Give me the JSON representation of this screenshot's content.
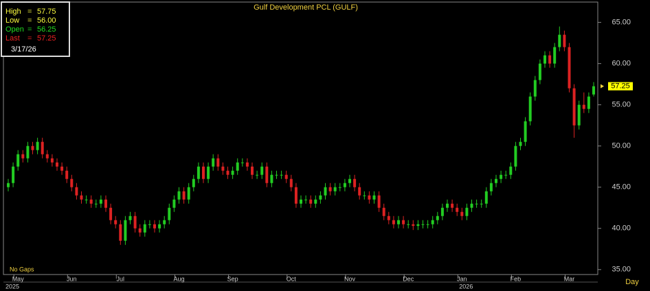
{
  "chart_data": {
    "type": "candlestick",
    "title": "Gulf Development PCL (GULF)",
    "info": {
      "rows": [
        {
          "name": "High",
          "value": "57.75",
          "color": "#ffff40"
        },
        {
          "name": "Low",
          "value": "56.00",
          "color": "#ffff40"
        },
        {
          "name": "Open",
          "value": "56.25",
          "color": "#22dd22"
        },
        {
          "name": "Last",
          "value": "57.25",
          "color": "#ee2222"
        }
      ],
      "date": "3/17/26"
    },
    "last_price": {
      "value": 57.25,
      "label": "57.25"
    },
    "note": "No Gaps",
    "period": "Day",
    "up_color": "#22cc22",
    "down_color": "#dd2222",
    "ylim": [
      34.4,
      67.3
    ],
    "yticks": [
      {
        "value": 35,
        "label": "35.00"
      },
      {
        "value": 40,
        "label": "40.00"
      },
      {
        "value": 45,
        "label": "45.00"
      },
      {
        "value": 50,
        "label": "50.00"
      },
      {
        "value": 55,
        "label": "55.00"
      },
      {
        "value": 60,
        "label": "60.00"
      },
      {
        "value": 65,
        "label": "65.00"
      }
    ],
    "xticks": [
      {
        "value": 2,
        "label": "May"
      },
      {
        "value": 13,
        "label": "Jun"
      },
      {
        "value": 23,
        "label": "Jul"
      },
      {
        "value": 35,
        "label": "Aug"
      },
      {
        "value": 46,
        "label": "Sep"
      },
      {
        "value": 58,
        "label": "Oct"
      },
      {
        "value": 70,
        "label": "Nov"
      },
      {
        "value": 82,
        "label": "Dec"
      },
      {
        "value": 93,
        "label": "Jan"
      },
      {
        "value": 104,
        "label": "Feb"
      },
      {
        "value": 115,
        "label": "Mar"
      }
    ],
    "years": [
      {
        "value": 0,
        "label": "2025"
      },
      {
        "value": 93,
        "label": "2026"
      }
    ],
    "grid": false,
    "ohlc": [
      [
        45,
        46,
        44.5,
        45.5
      ],
      [
        45.5,
        48,
        45,
        47.5
      ],
      [
        47.5,
        49.5,
        47,
        49
      ],
      [
        49,
        49.5,
        48,
        48.5
      ],
      [
        48.5,
        50.5,
        48,
        50
      ],
      [
        50,
        50.5,
        49,
        49.5
      ],
      [
        49.5,
        51,
        49,
        50.5
      ],
      [
        50.5,
        51,
        48.5,
        49
      ],
      [
        49,
        49.5,
        48,
        48.5
      ],
      [
        48.5,
        49,
        47.5,
        48
      ],
      [
        48,
        48.5,
        47,
        47.5
      ],
      [
        47.5,
        48,
        46.5,
        47
      ],
      [
        47,
        47.5,
        45.5,
        46
      ],
      [
        46,
        46.5,
        44.5,
        45
      ],
      [
        45,
        45.5,
        43.5,
        44
      ],
      [
        44,
        44.5,
        43,
        43.5
      ],
      [
        43.5,
        44,
        43,
        43.5
      ],
      [
        43.5,
        44,
        42.5,
        43
      ],
      [
        43,
        43.5,
        42.5,
        43
      ],
      [
        43,
        44,
        42.5,
        43.5
      ],
      [
        43.5,
        44,
        42,
        42.5
      ],
      [
        42.5,
        43,
        40.5,
        41
      ],
      [
        41,
        41.5,
        40,
        40.5
      ],
      [
        40.5,
        41,
        38,
        38.5
      ],
      [
        38.5,
        41.5,
        38,
        41
      ],
      [
        41,
        42,
        40.5,
        41.5
      ],
      [
        41.5,
        42,
        39.5,
        40
      ],
      [
        40,
        40.5,
        39,
        39.5
      ],
      [
        39.5,
        41,
        39,
        40.5
      ],
      [
        40.5,
        41,
        40,
        40.5
      ],
      [
        40.5,
        41,
        39.5,
        40
      ],
      [
        40,
        41,
        39.5,
        40.5
      ],
      [
        40.5,
        41.5,
        40,
        41
      ],
      [
        41,
        43,
        40.5,
        42.5
      ],
      [
        42.5,
        44,
        42,
        43.5
      ],
      [
        43.5,
        45,
        43,
        44.5
      ],
      [
        44.5,
        45,
        43,
        43.5
      ],
      [
        43.5,
        45.5,
        43,
        45
      ],
      [
        45,
        46.5,
        44.5,
        46
      ],
      [
        46,
        48,
        45.5,
        47.5
      ],
      [
        47.5,
        48,
        45.5,
        46
      ],
      [
        46,
        48,
        45.5,
        47.5
      ],
      [
        47.5,
        49,
        47,
        48.5
      ],
      [
        48.5,
        49,
        47,
        47.5
      ],
      [
        47.5,
        48,
        46.5,
        47
      ],
      [
        47,
        47.5,
        46,
        46.5
      ],
      [
        46.5,
        47.5,
        46,
        47
      ],
      [
        47,
        48.5,
        46.5,
        48
      ],
      [
        48,
        48.5,
        47.5,
        48
      ],
      [
        48,
        48.5,
        47,
        47.5
      ],
      [
        47.5,
        48,
        46,
        46.5
      ],
      [
        46.5,
        47,
        46,
        46.5
      ],
      [
        46.5,
        48,
        46,
        47.5
      ],
      [
        47.5,
        48,
        45,
        45.5
      ],
      [
        45.5,
        47,
        45,
        46.5
      ],
      [
        46.5,
        47,
        46,
        46.5
      ],
      [
        46.5,
        47,
        46,
        46.5
      ],
      [
        46.5,
        47,
        45.5,
        46
      ],
      [
        46,
        46.5,
        44.5,
        45
      ],
      [
        45,
        45.5,
        42.5,
        43
      ],
      [
        43,
        44,
        42.5,
        43.5
      ],
      [
        43.5,
        44,
        43,
        43.5
      ],
      [
        43.5,
        44,
        42.5,
        43
      ],
      [
        43,
        44,
        42.5,
        43.5
      ],
      [
        43.5,
        44.5,
        43,
        44
      ],
      [
        44,
        45.5,
        43.5,
        45
      ],
      [
        45,
        45.5,
        44,
        44.5
      ],
      [
        44.5,
        45.5,
        44,
        45
      ],
      [
        45,
        45.5,
        44.5,
        45
      ],
      [
        45,
        46,
        44.5,
        45.5
      ],
      [
        45.5,
        46.5,
        45,
        46
      ],
      [
        46,
        46.5,
        44.5,
        45
      ],
      [
        45,
        45.5,
        43.5,
        44
      ],
      [
        44,
        44.5,
        43.5,
        44
      ],
      [
        44,
        44.5,
        43,
        43.5
      ],
      [
        43.5,
        44.5,
        43,
        44
      ],
      [
        44,
        44.5,
        42,
        42.5
      ],
      [
        42.5,
        43,
        41,
        41.5
      ],
      [
        41.5,
        42,
        40.5,
        41
      ],
      [
        41,
        41.5,
        40,
        40.5
      ],
      [
        40.5,
        41.5,
        40,
        41
      ],
      [
        41,
        41.5,
        40,
        40.5
      ],
      [
        40.5,
        41,
        40,
        40.5
      ],
      [
        40.5,
        41,
        39.8,
        40.3
      ],
      [
        40.3,
        41,
        39.8,
        40.5
      ],
      [
        40.5,
        41,
        40,
        40.5
      ],
      [
        40.5,
        41,
        40,
        40.5
      ],
      [
        40.5,
        41.5,
        40,
        41
      ],
      [
        41,
        42,
        40.5,
        41.5
      ],
      [
        41.5,
        43,
        41,
        42.5
      ],
      [
        42.5,
        43.5,
        42,
        43
      ],
      [
        43,
        43.5,
        42,
        42.5
      ],
      [
        42.5,
        43,
        41.5,
        42
      ],
      [
        42,
        42.5,
        41,
        41.5
      ],
      [
        41.5,
        43,
        41,
        42.5
      ],
      [
        42.5,
        43.5,
        42,
        43
      ],
      [
        43,
        43.5,
        42.5,
        43
      ],
      [
        43,
        43.5,
        42.5,
        43
      ],
      [
        43,
        45,
        42.5,
        44.5
      ],
      [
        44.5,
        46,
        44,
        45.5
      ],
      [
        45.5,
        46.5,
        45,
        46
      ],
      [
        46,
        47,
        45.5,
        46.5
      ],
      [
        46.5,
        47,
        46,
        46.5
      ],
      [
        46.5,
        48,
        46,
        47.5
      ],
      [
        47.5,
        50.5,
        47,
        50
      ],
      [
        50,
        51,
        49.5,
        50.5
      ],
      [
        50.5,
        53.5,
        50,
        53
      ],
      [
        53,
        56.5,
        52.5,
        56
      ],
      [
        56,
        58.5,
        55.5,
        58
      ],
      [
        58,
        60.5,
        57.5,
        60
      ],
      [
        60,
        61.5,
        59.5,
        61
      ],
      [
        61,
        61.5,
        59.5,
        60
      ],
      [
        60,
        62.5,
        59.5,
        62
      ],
      [
        62,
        64.5,
        61.5,
        63.5
      ],
      [
        63.5,
        64,
        61.5,
        62
      ],
      [
        62,
        62.5,
        56.5,
        57
      ],
      [
        57,
        57.5,
        51,
        52.5
      ],
      [
        52.5,
        55.5,
        52,
        55
      ],
      [
        55,
        56.5,
        54,
        54.5
      ],
      [
        54.5,
        56.5,
        54,
        56
      ],
      [
        56.25,
        57.75,
        56,
        57.25
      ]
    ]
  }
}
